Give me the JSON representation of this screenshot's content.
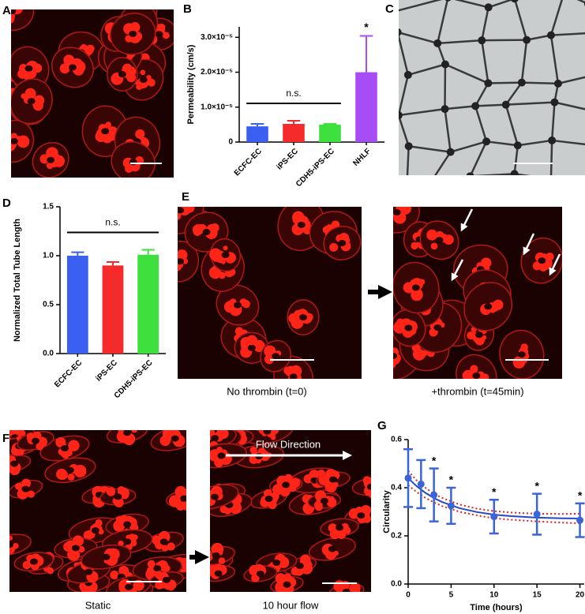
{
  "panel_labels": [
    "A",
    "B",
    "C",
    "D",
    "E",
    "F",
    "G"
  ],
  "image_captions": [
    "No thrombin (t=0)",
    "+thrombin (t=45min)",
    "Static",
    "10 hour flow"
  ],
  "flow_label": "Flow Direction",
  "chart_data": [
    {
      "type": "bar",
      "y_label": "Permeability (cm/s)",
      "categories": [
        "ECFC-EC",
        "iPS-EC",
        "CDH5-iPS-EC",
        "NHLF"
      ],
      "values": [
        4.5e-06,
        5.2e-06,
        5e-06,
        2e-05
      ],
      "errors": [
        7e-07,
        9e-07,
        2e-07,
        1.04e-05
      ],
      "colors": [
        "#3b5ff0",
        "#f52a2a",
        "#3de03d",
        "#a64df5"
      ],
      "ylim": [
        0,
        3.3e-05
      ],
      "yticks": [
        0,
        {
          "value": 1e-05,
          "label": "1.0×10⁻⁵"
        },
        {
          "value": 2e-05,
          "label": "2.0×10⁻⁵"
        },
        {
          "value": 3e-05,
          "label": "3.0×10⁻⁵"
        }
      ],
      "annotation": "n.s.",
      "significance_label": "*"
    },
    {
      "type": "bar",
      "y_label": "Normalized Total Tube Length",
      "categories": [
        "ECFC-EC",
        "iPS-EC",
        "CDH5-iPS-EC"
      ],
      "values": [
        1.0,
        0.9,
        1.01
      ],
      "errors": [
        0.035,
        0.035,
        0.05
      ],
      "colors": [
        "#3b5ff0",
        "#f52a2a",
        "#3de03d"
      ],
      "ylim": [
        0,
        1.5
      ],
      "yticks": [
        {
          "value": 0,
          "label": "0.0"
        },
        0.5,
        {
          "value": 1,
          "label": "1.0"
        },
        1.5
      ],
      "annotation": "n.s."
    },
    {
      "type": "scatter",
      "x_label": "Time (hours)",
      "y_label": "Circularity",
      "x": [
        0,
        1.5,
        3,
        5,
        10,
        15,
        20
      ],
      "values": [
        0.44,
        0.415,
        0.37,
        0.325,
        0.28,
        0.29,
        0.265
      ],
      "errors": [
        0.12,
        0.1,
        0.11,
        0.075,
        0.07,
        0.085,
        0.07
      ],
      "color": "#3a64d8",
      "fit_x": [
        0,
        1,
        2,
        3,
        4,
        6,
        8,
        10,
        12,
        15,
        18,
        20
      ],
      "fit_values": [
        0.44,
        0.406,
        0.379,
        0.357,
        0.34,
        0.315,
        0.299,
        0.288,
        0.282,
        0.276,
        0.273,
        0.272
      ],
      "ci_upper": [
        0.47,
        0.43,
        0.4,
        0.375,
        0.357,
        0.33,
        0.313,
        0.303,
        0.297,
        0.292,
        0.291,
        0.292
      ],
      "ci_lower": [
        0.41,
        0.382,
        0.358,
        0.339,
        0.323,
        0.3,
        0.285,
        0.273,
        0.267,
        0.26,
        0.255,
        0.252
      ],
      "fit_color": "#2448c8",
      "ci_color": "#e02020",
      "xlim": [
        0,
        20.5
      ],
      "xticks": [
        0,
        5,
        10,
        15,
        20
      ],
      "ylim": [
        0,
        0.6
      ],
      "yticks": [
        {
          "value": 0,
          "label": "0.0"
        },
        0.2,
        0.4,
        0.6
      ],
      "significance_label": "*",
      "significant_x": [
        3,
        5,
        10,
        15,
        20
      ]
    }
  ]
}
